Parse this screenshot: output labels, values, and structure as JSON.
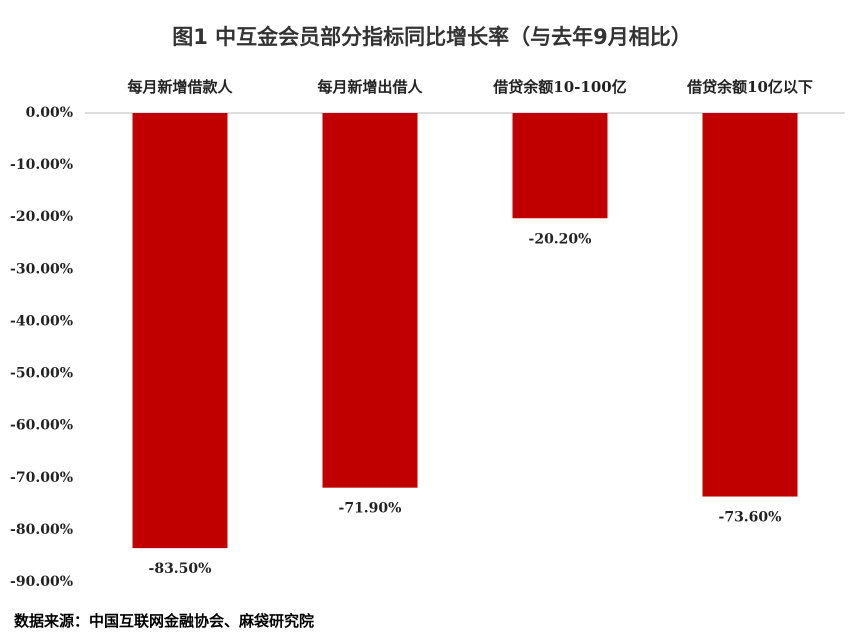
{
  "chart_data": {
    "type": "bar",
    "title": "图1   中互金会员部分指标同比增长率（与去年9月相比）",
    "categories": [
      "每月新增借款人",
      "每月新增出借人",
      "借贷余额10-100亿",
      "借贷余额10亿以下"
    ],
    "values": [
      -83.5,
      -71.9,
      -20.2,
      -73.6
    ],
    "value_labels": [
      "-83.50%",
      "-71.90%",
      "-20.20%",
      "-73.60%"
    ],
    "color": "#c00000",
    "ylim": [
      -90,
      0
    ],
    "yticks": [
      {
        "value": 0,
        "label": "0.00%"
      },
      {
        "value": -10,
        "label": "-10.00%"
      },
      {
        "value": -20,
        "label": "-20.00%"
      },
      {
        "value": -30,
        "label": "-30.00%"
      },
      {
        "value": -40,
        "label": "-40.00%"
      },
      {
        "value": -50,
        "label": "-50.00%"
      },
      {
        "value": -60,
        "label": "-60.00%"
      },
      {
        "value": -70,
        "label": "-70.00%"
      },
      {
        "value": -80,
        "label": "-80.00%"
      },
      {
        "value": -90,
        "label": "-90.00%"
      }
    ],
    "grid": false,
    "source": "数据来源：中国互联网金融协会、麻袋研究院"
  }
}
